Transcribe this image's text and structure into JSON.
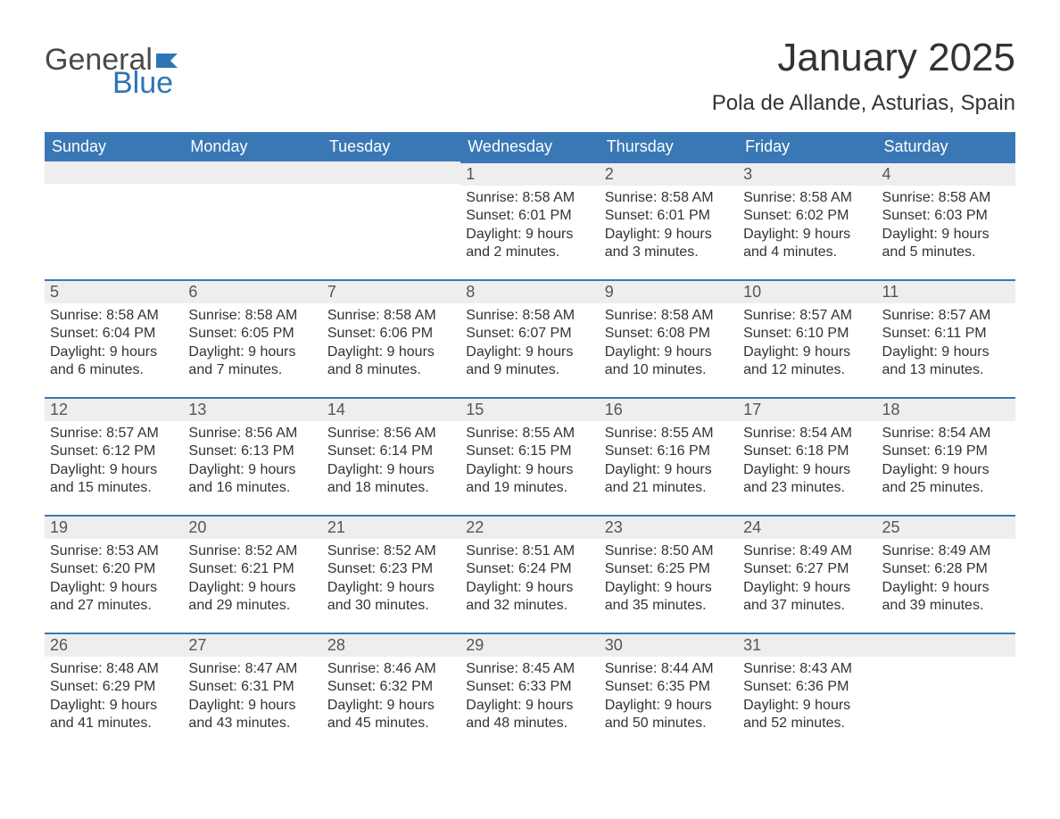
{
  "logo": {
    "word1": "General",
    "word2": "Blue",
    "flag_color": "#2e75b6",
    "text_gray": "#4a4a4a"
  },
  "title": "January 2025",
  "location": "Pola de Allande, Asturias, Spain",
  "colors": {
    "header_bg": "#3a78b5",
    "header_text": "#ffffff",
    "daynum_bg": "#eeeeee",
    "daynum_border": "#3a78b5",
    "body_text": "#333333",
    "page_bg": "#ffffff"
  },
  "weekdays": [
    "Sunday",
    "Monday",
    "Tuesday",
    "Wednesday",
    "Thursday",
    "Friday",
    "Saturday"
  ],
  "weeks": [
    [
      {
        "blank": true
      },
      {
        "blank": true
      },
      {
        "blank": true
      },
      {
        "day": "1",
        "sunrise": "Sunrise: 8:58 AM",
        "sunset": "Sunset: 6:01 PM",
        "daylight": "Daylight: 9 hours and 2 minutes."
      },
      {
        "day": "2",
        "sunrise": "Sunrise: 8:58 AM",
        "sunset": "Sunset: 6:01 PM",
        "daylight": "Daylight: 9 hours and 3 minutes."
      },
      {
        "day": "3",
        "sunrise": "Sunrise: 8:58 AM",
        "sunset": "Sunset: 6:02 PM",
        "daylight": "Daylight: 9 hours and 4 minutes."
      },
      {
        "day": "4",
        "sunrise": "Sunrise: 8:58 AM",
        "sunset": "Sunset: 6:03 PM",
        "daylight": "Daylight: 9 hours and 5 minutes."
      }
    ],
    [
      {
        "day": "5",
        "sunrise": "Sunrise: 8:58 AM",
        "sunset": "Sunset: 6:04 PM",
        "daylight": "Daylight: 9 hours and 6 minutes."
      },
      {
        "day": "6",
        "sunrise": "Sunrise: 8:58 AM",
        "sunset": "Sunset: 6:05 PM",
        "daylight": "Daylight: 9 hours and 7 minutes."
      },
      {
        "day": "7",
        "sunrise": "Sunrise: 8:58 AM",
        "sunset": "Sunset: 6:06 PM",
        "daylight": "Daylight: 9 hours and 8 minutes."
      },
      {
        "day": "8",
        "sunrise": "Sunrise: 8:58 AM",
        "sunset": "Sunset: 6:07 PM",
        "daylight": "Daylight: 9 hours and 9 minutes."
      },
      {
        "day": "9",
        "sunrise": "Sunrise: 8:58 AM",
        "sunset": "Sunset: 6:08 PM",
        "daylight": "Daylight: 9 hours and 10 minutes."
      },
      {
        "day": "10",
        "sunrise": "Sunrise: 8:57 AM",
        "sunset": "Sunset: 6:10 PM",
        "daylight": "Daylight: 9 hours and 12 minutes."
      },
      {
        "day": "11",
        "sunrise": "Sunrise: 8:57 AM",
        "sunset": "Sunset: 6:11 PM",
        "daylight": "Daylight: 9 hours and 13 minutes."
      }
    ],
    [
      {
        "day": "12",
        "sunrise": "Sunrise: 8:57 AM",
        "sunset": "Sunset: 6:12 PM",
        "daylight": "Daylight: 9 hours and 15 minutes."
      },
      {
        "day": "13",
        "sunrise": "Sunrise: 8:56 AM",
        "sunset": "Sunset: 6:13 PM",
        "daylight": "Daylight: 9 hours and 16 minutes."
      },
      {
        "day": "14",
        "sunrise": "Sunrise: 8:56 AM",
        "sunset": "Sunset: 6:14 PM",
        "daylight": "Daylight: 9 hours and 18 minutes."
      },
      {
        "day": "15",
        "sunrise": "Sunrise: 8:55 AM",
        "sunset": "Sunset: 6:15 PM",
        "daylight": "Daylight: 9 hours and 19 minutes."
      },
      {
        "day": "16",
        "sunrise": "Sunrise: 8:55 AM",
        "sunset": "Sunset: 6:16 PM",
        "daylight": "Daylight: 9 hours and 21 minutes."
      },
      {
        "day": "17",
        "sunrise": "Sunrise: 8:54 AM",
        "sunset": "Sunset: 6:18 PM",
        "daylight": "Daylight: 9 hours and 23 minutes."
      },
      {
        "day": "18",
        "sunrise": "Sunrise: 8:54 AM",
        "sunset": "Sunset: 6:19 PM",
        "daylight": "Daylight: 9 hours and 25 minutes."
      }
    ],
    [
      {
        "day": "19",
        "sunrise": "Sunrise: 8:53 AM",
        "sunset": "Sunset: 6:20 PM",
        "daylight": "Daylight: 9 hours and 27 minutes."
      },
      {
        "day": "20",
        "sunrise": "Sunrise: 8:52 AM",
        "sunset": "Sunset: 6:21 PM",
        "daylight": "Daylight: 9 hours and 29 minutes."
      },
      {
        "day": "21",
        "sunrise": "Sunrise: 8:52 AM",
        "sunset": "Sunset: 6:23 PM",
        "daylight": "Daylight: 9 hours and 30 minutes."
      },
      {
        "day": "22",
        "sunrise": "Sunrise: 8:51 AM",
        "sunset": "Sunset: 6:24 PM",
        "daylight": "Daylight: 9 hours and 32 minutes."
      },
      {
        "day": "23",
        "sunrise": "Sunrise: 8:50 AM",
        "sunset": "Sunset: 6:25 PM",
        "daylight": "Daylight: 9 hours and 35 minutes."
      },
      {
        "day": "24",
        "sunrise": "Sunrise: 8:49 AM",
        "sunset": "Sunset: 6:27 PM",
        "daylight": "Daylight: 9 hours and 37 minutes."
      },
      {
        "day": "25",
        "sunrise": "Sunrise: 8:49 AM",
        "sunset": "Sunset: 6:28 PM",
        "daylight": "Daylight: 9 hours and 39 minutes."
      }
    ],
    [
      {
        "day": "26",
        "sunrise": "Sunrise: 8:48 AM",
        "sunset": "Sunset: 6:29 PM",
        "daylight": "Daylight: 9 hours and 41 minutes."
      },
      {
        "day": "27",
        "sunrise": "Sunrise: 8:47 AM",
        "sunset": "Sunset: 6:31 PM",
        "daylight": "Daylight: 9 hours and 43 minutes."
      },
      {
        "day": "28",
        "sunrise": "Sunrise: 8:46 AM",
        "sunset": "Sunset: 6:32 PM",
        "daylight": "Daylight: 9 hours and 45 minutes."
      },
      {
        "day": "29",
        "sunrise": "Sunrise: 8:45 AM",
        "sunset": "Sunset: 6:33 PM",
        "daylight": "Daylight: 9 hours and 48 minutes."
      },
      {
        "day": "30",
        "sunrise": "Sunrise: 8:44 AM",
        "sunset": "Sunset: 6:35 PM",
        "daylight": "Daylight: 9 hours and 50 minutes."
      },
      {
        "day": "31",
        "sunrise": "Sunrise: 8:43 AM",
        "sunset": "Sunset: 6:36 PM",
        "daylight": "Daylight: 9 hours and 52 minutes."
      },
      {
        "trailing_blank": true
      }
    ]
  ]
}
